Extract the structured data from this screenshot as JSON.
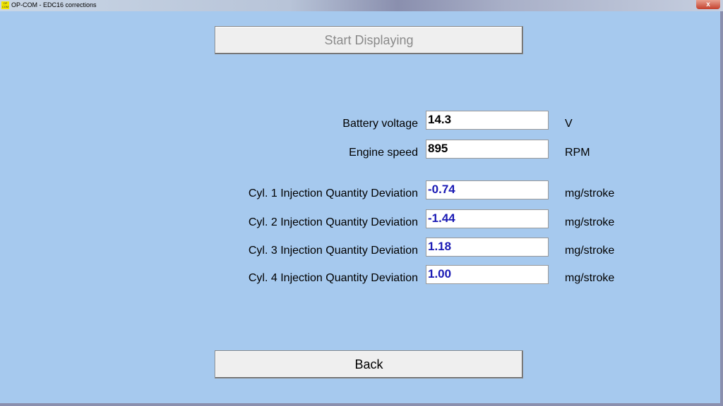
{
  "window": {
    "title": "OP-COM - EDC16 corrections",
    "icon_text": "OP COM",
    "close_label": "x"
  },
  "buttons": {
    "start": "Start Displaying",
    "back": "Back"
  },
  "rows": [
    {
      "label": "Battery voltage",
      "value": "14.3",
      "unit": "V",
      "color": "#000000"
    },
    {
      "label": "Engine speed",
      "value": "895",
      "unit": "RPM",
      "color": "#000000"
    },
    {
      "label": "Cyl. 1 Injection Quantity Deviation",
      "value": "-0.74",
      "unit": "mg/stroke",
      "color": "#1a1ab4"
    },
    {
      "label": "Cyl. 2 Injection Quantity Deviation",
      "value": "-1.44",
      "unit": "mg/stroke",
      "color": "#1a1ab4"
    },
    {
      "label": "Cyl. 3 Injection Quantity Deviation",
      "value": "1.18",
      "unit": "mg/stroke",
      "color": "#1a1ab4"
    },
    {
      "label": "Cyl. 4 Injection Quantity Deviation",
      "value": "1.00",
      "unit": "mg/stroke",
      "color": "#1a1ab4"
    }
  ]
}
